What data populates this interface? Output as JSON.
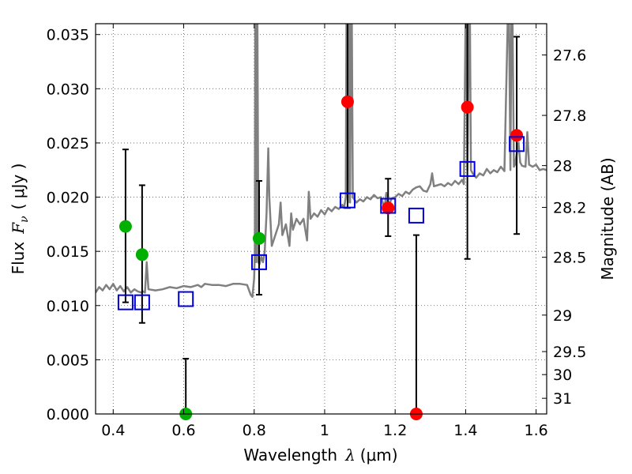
{
  "chart_data": {
    "type": "scatter",
    "xlabel": {
      "prefix": "Wavelength",
      "symbol": "λ",
      "unit": "(μm)"
    },
    "ylabel": {
      "prefix": "Flux",
      "symbol": "F",
      "subscript": "ν",
      "unit": "( μJy )"
    },
    "y2label": "Magnitude (AB)",
    "xlim": [
      0.35,
      1.63
    ],
    "ylim": [
      0.0,
      0.036
    ],
    "grid": true,
    "x_ticks": [
      {
        "value": 0.4,
        "label": "0.4"
      },
      {
        "value": 0.6,
        "label": "0.6"
      },
      {
        "value": 0.8,
        "label": "0.8"
      },
      {
        "value": 1.0,
        "label": "1"
      },
      {
        "value": 1.2,
        "label": "1.2"
      },
      {
        "value": 1.4,
        "label": "1.4"
      },
      {
        "value": 1.6,
        "label": "1.6"
      }
    ],
    "y_ticks": [
      {
        "value": 0.0,
        "label": "0.000"
      },
      {
        "value": 0.005,
        "label": "0.005"
      },
      {
        "value": 0.01,
        "label": "0.010"
      },
      {
        "value": 0.015,
        "label": "0.015"
      },
      {
        "value": 0.02,
        "label": "0.020"
      },
      {
        "value": 0.025,
        "label": "0.025"
      },
      {
        "value": 0.03,
        "label": "0.030"
      },
      {
        "value": 0.035,
        "label": "0.035"
      }
    ],
    "y2_ticks": [
      {
        "value": 27.6,
        "label": "27.6"
      },
      {
        "value": 27.8,
        "label": "27.8"
      },
      {
        "value": 28.0,
        "label": "28"
      },
      {
        "value": 28.2,
        "label": "28.2"
      },
      {
        "value": 28.5,
        "label": "28.5"
      },
      {
        "value": 29.0,
        "label": "29"
      },
      {
        "value": 29.5,
        "label": "29.5"
      },
      {
        "value": 30.0,
        "label": "30"
      },
      {
        "value": 31.0,
        "label": "31"
      }
    ],
    "observed_points": [
      {
        "band": 1,
        "x": 0.435,
        "y": 0.0173,
        "err_low": 0.0103,
        "err_high": 0.0244,
        "color": "#00b000"
      },
      {
        "band": 2,
        "x": 0.482,
        "y": 0.0147,
        "err_low": 0.0084,
        "err_high": 0.0211,
        "color": "#00b000"
      },
      {
        "band": 3,
        "x": 0.606,
        "y": 0.0,
        "err_low": 0.0,
        "err_high": 0.0051,
        "color": "#00b000"
      },
      {
        "band": 4,
        "x": 0.814,
        "y": 0.0162,
        "err_low": 0.011,
        "err_high": 0.0215,
        "color": "#00b000"
      },
      {
        "band": 5,
        "x": 1.065,
        "y": 0.0288,
        "err_low": 0.019,
        "err_high": 0.037,
        "color": "#ff0000"
      },
      {
        "band": 6,
        "x": 1.18,
        "y": 0.019,
        "err_low": 0.0164,
        "err_high": 0.0217,
        "color": "#ff0000"
      },
      {
        "band": 7,
        "x": 1.26,
        "y": 0.0,
        "err_low": 0.0,
        "err_high": 0.0165,
        "color": "#ff0000"
      },
      {
        "band": 8,
        "x": 1.405,
        "y": 0.0283,
        "err_low": 0.0143,
        "err_high": 0.037,
        "color": "#ff0000"
      },
      {
        "band": 9,
        "x": 1.545,
        "y": 0.0257,
        "err_low": 0.0166,
        "err_high": 0.0348,
        "color": "#ff0000"
      }
    ],
    "model_points": [
      {
        "x": 0.435,
        "y": 0.0103
      },
      {
        "x": 0.482,
        "y": 0.0103
      },
      {
        "x": 0.606,
        "y": 0.0106
      },
      {
        "x": 0.814,
        "y": 0.014
      },
      {
        "x": 1.065,
        "y": 0.0197
      },
      {
        "x": 1.18,
        "y": 0.0192
      },
      {
        "x": 1.26,
        "y": 0.0183
      },
      {
        "x": 1.405,
        "y": 0.0226
      },
      {
        "x": 1.545,
        "y": 0.0249
      }
    ],
    "model_spectrum": [
      [
        0.35,
        0.0112
      ],
      [
        0.36,
        0.0117
      ],
      [
        0.37,
        0.0114
      ],
      [
        0.38,
        0.0119
      ],
      [
        0.39,
        0.0115
      ],
      [
        0.4,
        0.012
      ],
      [
        0.41,
        0.0114
      ],
      [
        0.42,
        0.0118
      ],
      [
        0.43,
        0.0113
      ],
      [
        0.44,
        0.0117
      ],
      [
        0.45,
        0.0112
      ],
      [
        0.46,
        0.0115
      ],
      [
        0.47,
        0.0113
      ],
      [
        0.48,
        0.0112
      ],
      [
        0.485,
        0.0113
      ],
      [
        0.49,
        0.0112
      ],
      [
        0.495,
        0.014
      ],
      [
        0.5,
        0.0115
      ],
      [
        0.52,
        0.0114
      ],
      [
        0.54,
        0.0115
      ],
      [
        0.56,
        0.0117
      ],
      [
        0.58,
        0.0116
      ],
      [
        0.6,
        0.0118
      ],
      [
        0.62,
        0.0117
      ],
      [
        0.64,
        0.0119
      ],
      [
        0.65,
        0.0117
      ],
      [
        0.66,
        0.012
      ],
      [
        0.68,
        0.0119
      ],
      [
        0.7,
        0.0119
      ],
      [
        0.72,
        0.0118
      ],
      [
        0.74,
        0.012
      ],
      [
        0.76,
        0.012
      ],
      [
        0.78,
        0.0119
      ],
      [
        0.79,
        0.011
      ],
      [
        0.795,
        0.0108
      ],
      [
        0.8,
        0.0125
      ],
      [
        0.802,
        0.015
      ],
      [
        0.803,
        0.037
      ],
      [
        0.804,
        0.037
      ],
      [
        0.806,
        0.014
      ],
      [
        0.808,
        0.037
      ],
      [
        0.809,
        0.037
      ],
      [
        0.812,
        0.014
      ],
      [
        0.815,
        0.0138
      ],
      [
        0.82,
        0.0145
      ],
      [
        0.825,
        0.014
      ],
      [
        0.83,
        0.015
      ],
      [
        0.835,
        0.0185
      ],
      [
        0.84,
        0.0245
      ],
      [
        0.843,
        0.02
      ],
      [
        0.85,
        0.0155
      ],
      [
        0.86,
        0.0165
      ],
      [
        0.87,
        0.0175
      ],
      [
        0.875,
        0.0195
      ],
      [
        0.88,
        0.0165
      ],
      [
        0.89,
        0.0175
      ],
      [
        0.9,
        0.0155
      ],
      [
        0.905,
        0.0185
      ],
      [
        0.91,
        0.017
      ],
      [
        0.92,
        0.018
      ],
      [
        0.93,
        0.0175
      ],
      [
        0.94,
        0.018
      ],
      [
        0.95,
        0.016
      ],
      [
        0.955,
        0.0205
      ],
      [
        0.96,
        0.018
      ],
      [
        0.97,
        0.0185
      ],
      [
        0.98,
        0.0182
      ],
      [
        0.99,
        0.0188
      ],
      [
        1.0,
        0.0184
      ],
      [
        1.01,
        0.019
      ],
      [
        1.02,
        0.0187
      ],
      [
        1.03,
        0.0191
      ],
      [
        1.04,
        0.0189
      ],
      [
        1.05,
        0.0193
      ],
      [
        1.055,
        0.019
      ],
      [
        1.06,
        0.02
      ],
      [
        1.062,
        0.037
      ],
      [
        1.064,
        0.037
      ],
      [
        1.066,
        0.0195
      ],
      [
        1.068,
        0.037
      ],
      [
        1.07,
        0.037
      ],
      [
        1.072,
        0.0195
      ],
      [
        1.075,
        0.037
      ],
      [
        1.077,
        0.037
      ],
      [
        1.08,
        0.02
      ],
      [
        1.09,
        0.0195
      ],
      [
        1.1,
        0.0198
      ],
      [
        1.11,
        0.0196
      ],
      [
        1.12,
        0.02
      ],
      [
        1.13,
        0.0198
      ],
      [
        1.14,
        0.0202
      ],
      [
        1.15,
        0.0199
      ],
      [
        1.16,
        0.02
      ],
      [
        1.17,
        0.019
      ],
      [
        1.175,
        0.0204
      ],
      [
        1.18,
        0.019
      ],
      [
        1.19,
        0.0199
      ],
      [
        1.2,
        0.02
      ],
      [
        1.21,
        0.0203
      ],
      [
        1.22,
        0.0201
      ],
      [
        1.23,
        0.0205
      ],
      [
        1.24,
        0.0203
      ],
      [
        1.25,
        0.0207
      ],
      [
        1.26,
        0.0209
      ],
      [
        1.27,
        0.021
      ],
      [
        1.28,
        0.0206
      ],
      [
        1.29,
        0.0205
      ],
      [
        1.3,
        0.0212
      ],
      [
        1.305,
        0.0222
      ],
      [
        1.31,
        0.021
      ],
      [
        1.32,
        0.0211
      ],
      [
        1.33,
        0.0212
      ],
      [
        1.34,
        0.021
      ],
      [
        1.35,
        0.0213
      ],
      [
        1.36,
        0.0211
      ],
      [
        1.37,
        0.0215
      ],
      [
        1.38,
        0.0212
      ],
      [
        1.39,
        0.0216
      ],
      [
        1.395,
        0.0212
      ],
      [
        1.4,
        0.037
      ],
      [
        1.402,
        0.037
      ],
      [
        1.405,
        0.0225
      ],
      [
        1.41,
        0.037
      ],
      [
        1.412,
        0.037
      ],
      [
        1.415,
        0.0225
      ],
      [
        1.42,
        0.0222
      ],
      [
        1.43,
        0.0218
      ],
      [
        1.44,
        0.0222
      ],
      [
        1.45,
        0.022
      ],
      [
        1.46,
        0.0226
      ],
      [
        1.47,
        0.0222
      ],
      [
        1.48,
        0.0225
      ],
      [
        1.49,
        0.0223
      ],
      [
        1.5,
        0.0228
      ],
      [
        1.51,
        0.0224
      ],
      [
        1.52,
        0.037
      ],
      [
        1.523,
        0.037
      ],
      [
        1.527,
        0.0225
      ],
      [
        1.53,
        0.037
      ],
      [
        1.533,
        0.037
      ],
      [
        1.537,
        0.0228
      ],
      [
        1.54,
        0.023
      ],
      [
        1.55,
        0.025
      ],
      [
        1.555,
        0.0232
      ],
      [
        1.56,
        0.0229
      ],
      [
        1.57,
        0.0228
      ],
      [
        1.575,
        0.026
      ],
      [
        1.58,
        0.023
      ],
      [
        1.59,
        0.0228
      ],
      [
        1.6,
        0.023
      ],
      [
        1.61,
        0.0225
      ],
      [
        1.62,
        0.0226
      ],
      [
        1.63,
        0.0225
      ]
    ],
    "colors": {
      "spectrum": "#808080",
      "model_marker": "#0000dd",
      "errorbar": "#000000",
      "grid": "#555555"
    }
  }
}
